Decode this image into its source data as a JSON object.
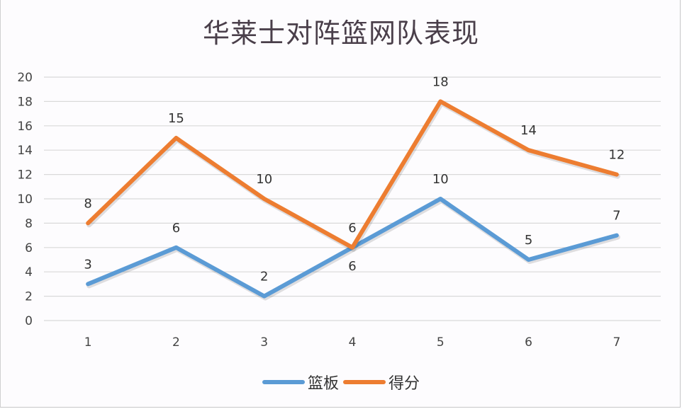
{
  "chart_data": {
    "type": "line",
    "title": "华莱士对阵篮网队表现",
    "xlabel": "",
    "ylabel": "",
    "categories": [
      "1",
      "2",
      "3",
      "4",
      "5",
      "6",
      "7"
    ],
    "ylim": [
      0,
      20
    ],
    "yticks": [
      "0",
      "2",
      "4",
      "6",
      "8",
      "10",
      "12",
      "14",
      "16",
      "18",
      "20"
    ],
    "grid": true,
    "legend_position": "bottom",
    "series": [
      {
        "name": "篮板",
        "color": "#5b9bd5",
        "values": [
          3,
          6,
          2,
          6,
          10,
          5,
          7
        ]
      },
      {
        "name": "得分",
        "color": "#ed7d31",
        "values": [
          8,
          15,
          10,
          6,
          18,
          14,
          12
        ]
      }
    ]
  },
  "legend": {
    "items": [
      {
        "label": "篮板",
        "color": "#5b9bd5"
      },
      {
        "label": "得分",
        "color": "#ed7d31"
      }
    ]
  }
}
